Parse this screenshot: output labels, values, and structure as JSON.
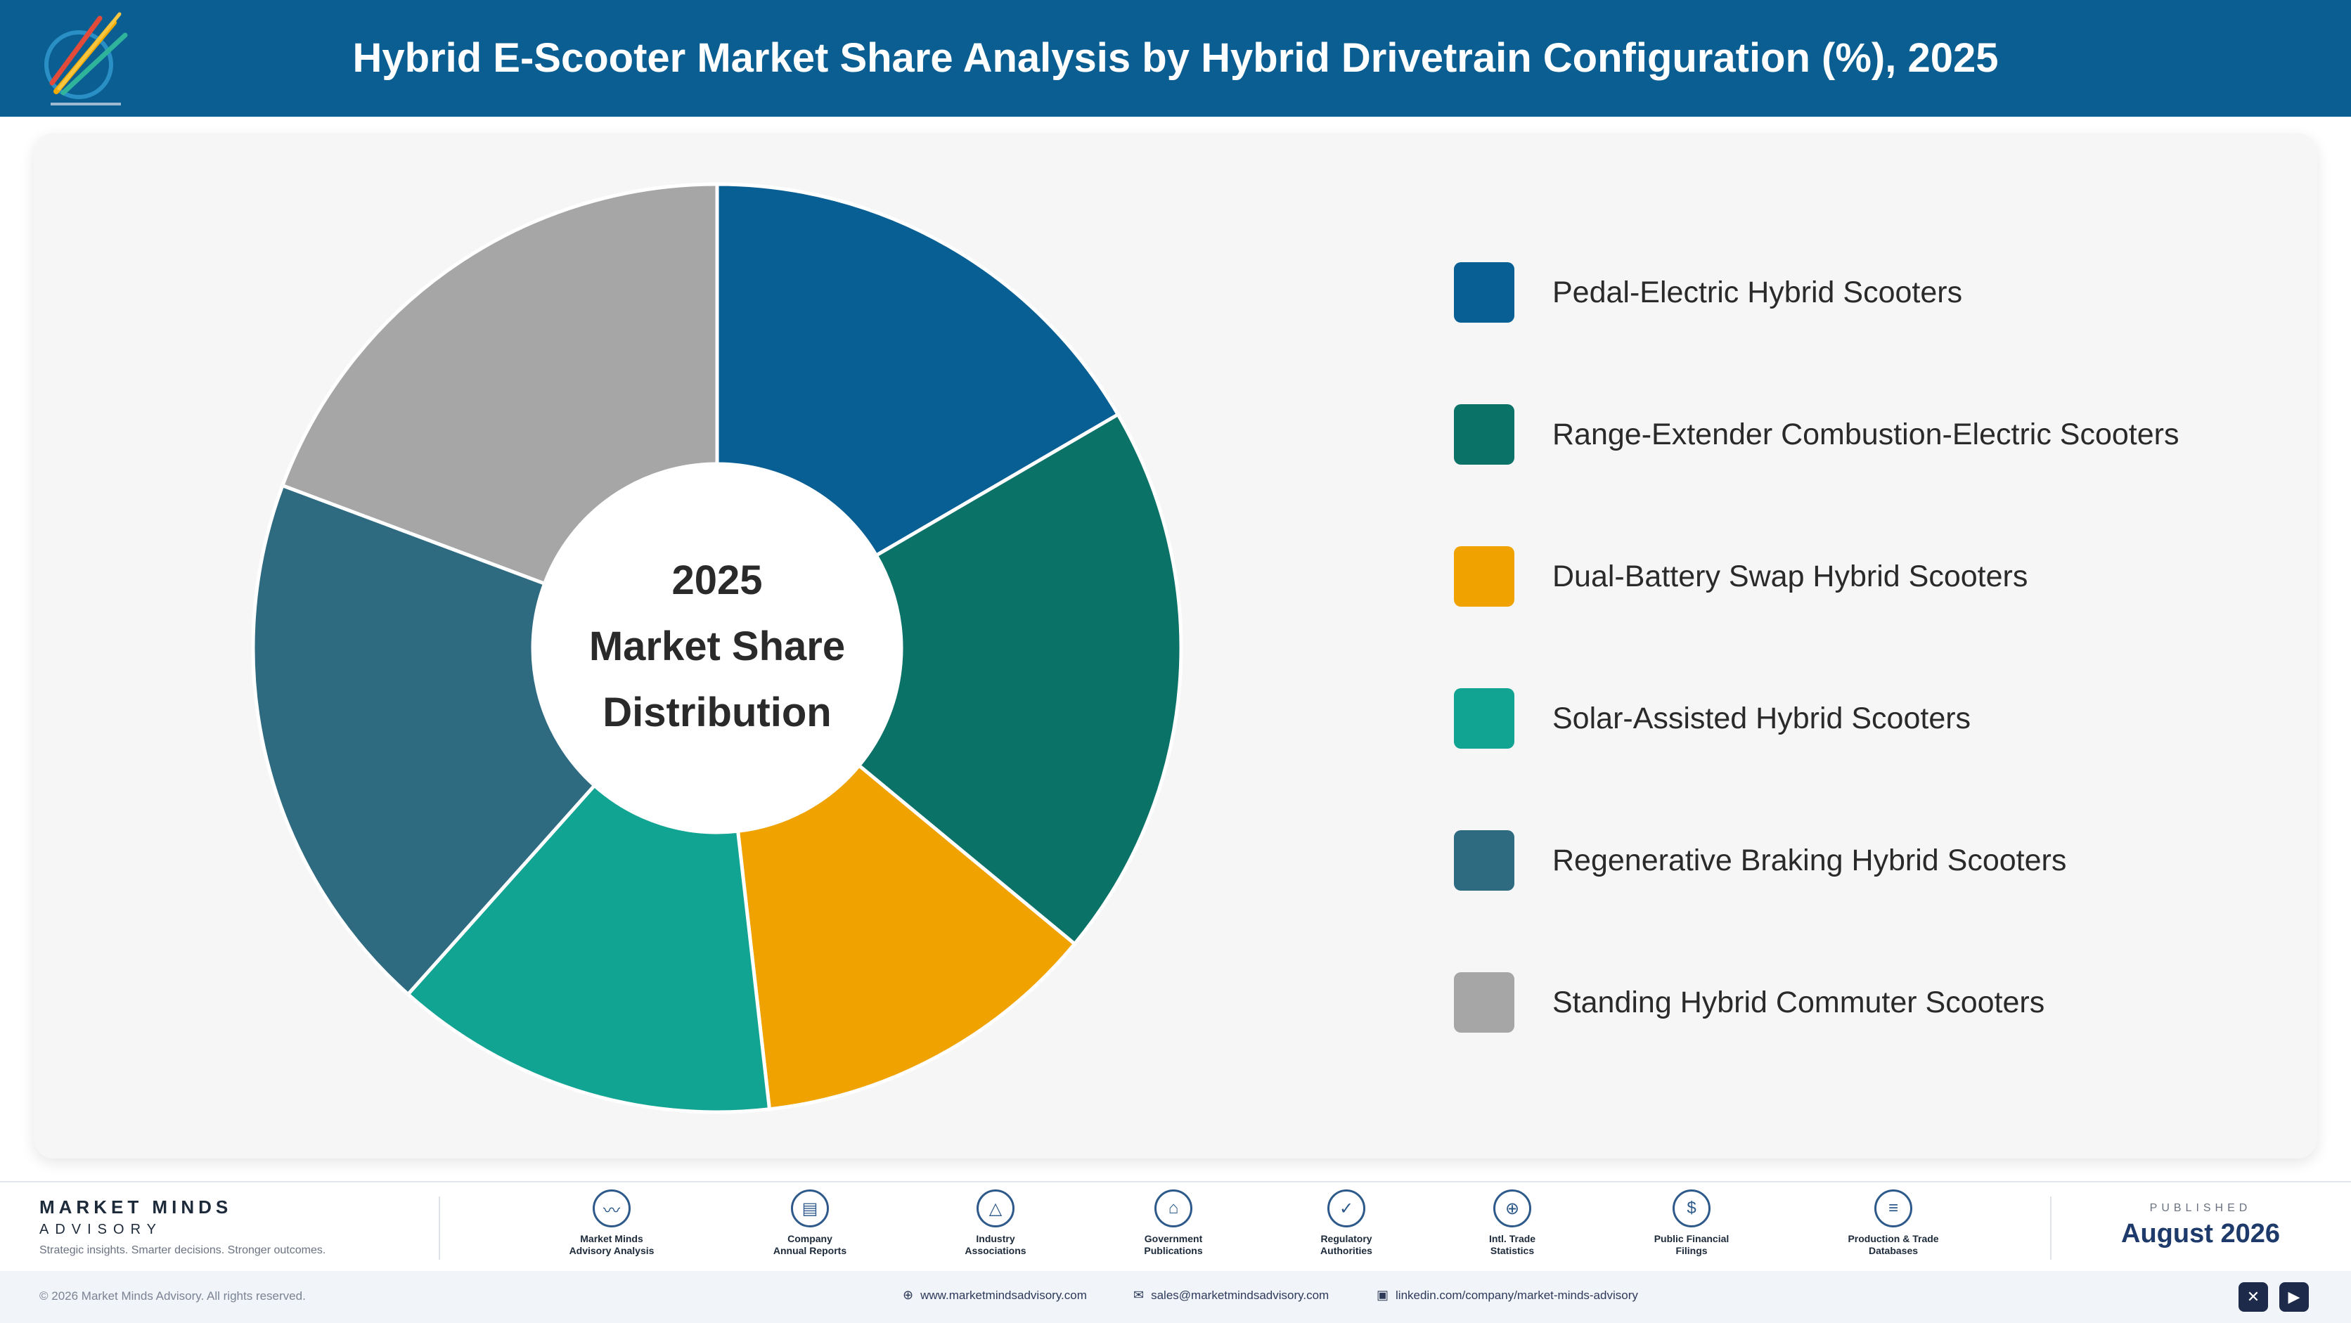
{
  "header": {
    "title": "Hybrid E-Scooter Market Share Analysis by Hybrid Drivetrain Configuration (%), 2025"
  },
  "chart_data": {
    "type": "pie",
    "donut": true,
    "center_label": [
      "2025",
      "Market Share",
      "Distribution"
    ],
    "categories": [
      "Pedal-Electric Hybrid Scooters",
      "Range-Extender Combustion-Electric Scooters",
      "Dual-Battery Swap Hybrid Scooters",
      "Solar-Assisted Hybrid Scooters",
      "Regenerative Braking Hybrid Scooters",
      "Standing Hybrid Commuter Scooters"
    ],
    "values": [
      16.6,
      19.4,
      12.2,
      13.4,
      19.1,
      19.3
    ],
    "colors": [
      "#085f94",
      "#0b7268",
      "#f0a300",
      "#12a493",
      "#2e6b80",
      "#a6a6a6"
    ],
    "legend_position": "right"
  },
  "footer": {
    "brand_name": "MARKET MINDS",
    "brand_sub": "ADVISORY",
    "tagline": "Strategic insights. Smarter decisions. Stronger outcomes.",
    "sources": [
      {
        "label": "Market Minds\nAdvisory Analysis",
        "icon": "chart-line-icon"
      },
      {
        "label": "Company\nAnnual Reports",
        "icon": "document-icon"
      },
      {
        "label": "Industry\nAssociations",
        "icon": "network-icon"
      },
      {
        "label": "Government\nPublications",
        "icon": "government-building-icon"
      },
      {
        "label": "Regulatory\nAuthorities",
        "icon": "shield-check-icon"
      },
      {
        "label": "Intl. Trade\nStatistics",
        "icon": "globe-icon"
      },
      {
        "label": "Public Financial\nFilings",
        "icon": "dollar-coin-icon"
      },
      {
        "label": "Production & Trade\nDatabases",
        "icon": "database-icon"
      }
    ],
    "published_label": "PUBLISHED",
    "published_date": "August 2026"
  },
  "bottom_bar": {
    "copyright": "© 2026 Market Minds Advisory. All rights reserved.",
    "website": "www.marketmindsadvisory.com",
    "email": "sales@marketmindsadvisory.com",
    "linkedin": "linkedin.com/company/market-minds-advisory"
  }
}
